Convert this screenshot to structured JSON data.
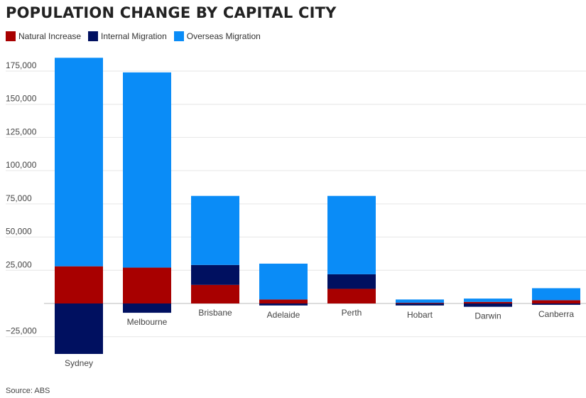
{
  "title": "POPULATION CHANGE BY CAPITAL CITY",
  "source": "Source: ABS",
  "colors": {
    "natural": "#a80000",
    "internal": "#001060",
    "overseas": "#0a8cf7",
    "grid": "#e6e6e6",
    "zero": "#bbbbbb"
  },
  "chart_data": {
    "type": "bar",
    "stacked": true,
    "title": "POPULATION CHANGE BY CAPITAL CITY",
    "categories": [
      "Sydney",
      "Melbourne",
      "Brisbane",
      "Adelaide",
      "Perth",
      "Hobart",
      "Darwin",
      "Canberra"
    ],
    "series": [
      {
        "name": "Natural Increase",
        "values": [
          28000,
          27000,
          14000,
          3000,
          11000,
          500,
          1200,
          2500
        ]
      },
      {
        "name": "Internal Migration",
        "values": [
          -38000,
          -7000,
          15000,
          -1500,
          11000,
          -1500,
          -2500,
          -1000
        ]
      },
      {
        "name": "Overseas Migration",
        "values": [
          157000,
          147000,
          52000,
          27000,
          59000,
          2500,
          2500,
          9000
        ]
      }
    ],
    "yticks": [
      -25000,
      0,
      25000,
      50000,
      75000,
      100000,
      125000,
      150000,
      175000
    ],
    "ytick_labels": [
      "−25,000",
      "",
      "25,000",
      "50,000",
      "75,000",
      "100,000",
      "125,000",
      "150,000",
      "175,000"
    ],
    "ylim": [
      -40000,
      185000
    ],
    "grid": true,
    "legend_position": "top-left",
    "xlabel": "",
    "ylabel": ""
  }
}
